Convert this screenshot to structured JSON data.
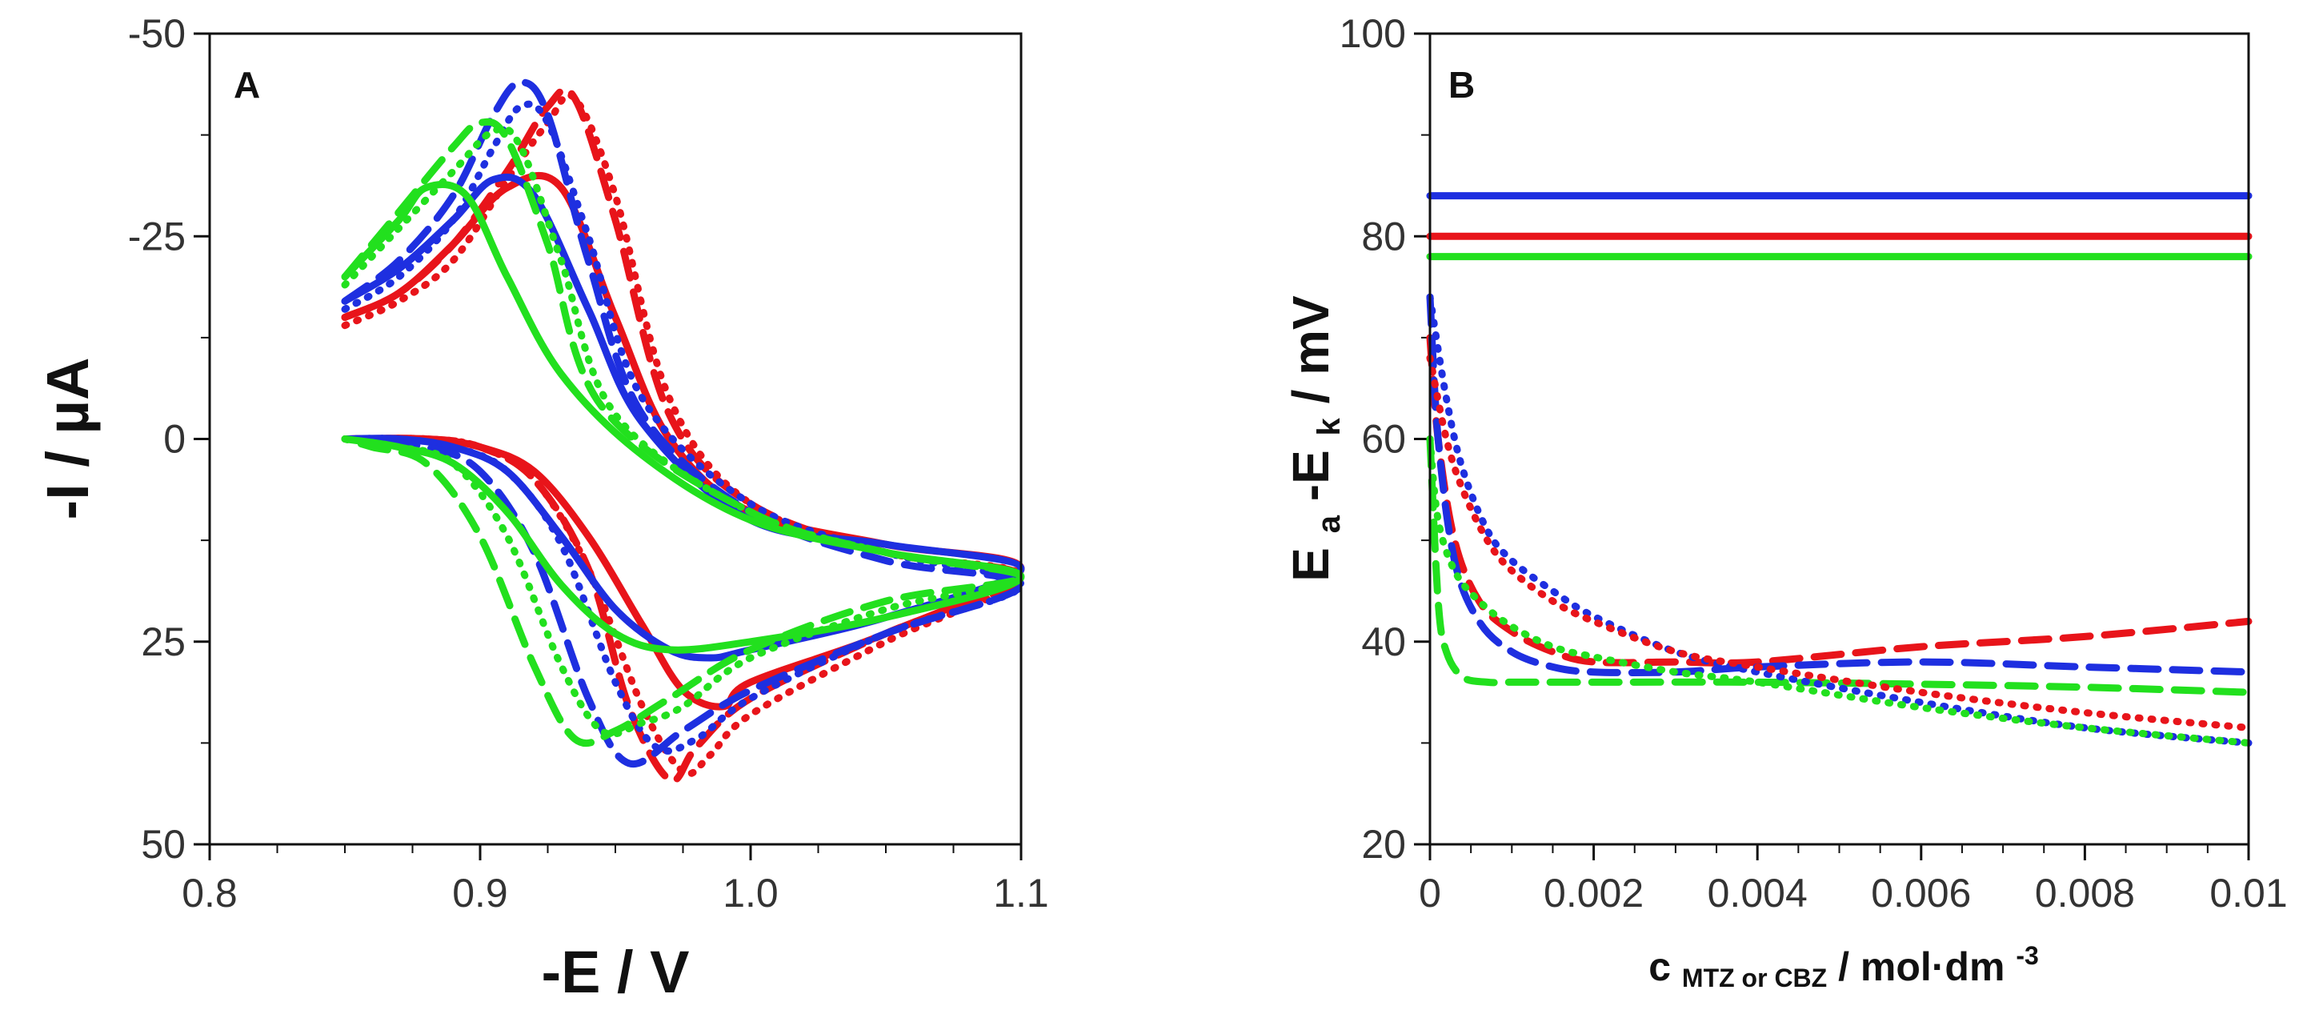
{
  "chart_data": [
    {
      "panel": "A",
      "type": "line",
      "title": "",
      "xlabel": "-E / V",
      "ylabel": "-I / µA",
      "xlim": [
        0.8,
        1.1
      ],
      "ylim": [
        -50,
        50
      ],
      "y_inverted": true,
      "xticks": [
        "0.8",
        "0.9",
        "1.0",
        "1.1"
      ],
      "yticks": [
        "-50",
        "-25",
        "0",
        "25",
        "50"
      ],
      "series": [
        {
          "name": "red solid",
          "color": "#e8141a",
          "style": "solid",
          "x": [
            0.85,
            0.87,
            0.89,
            0.91,
            0.93,
            0.95,
            0.97,
            1.0,
            1.05,
            1.1,
            1.05,
            1.0,
            0.99,
            0.975,
            0.96,
            0.94,
            0.92,
            0.9,
            0.88,
            0.85
          ],
          "y": [
            -15,
            -18,
            -24,
            -31,
            -31,
            -15,
            0,
            9,
            13,
            16,
            24,
            30,
            33,
            31,
            23,
            12,
            4,
            1,
            0,
            0
          ]
        },
        {
          "name": "red dotted",
          "color": "#e8141a",
          "style": "dotted",
          "x": [
            0.85,
            0.87,
            0.89,
            0.91,
            0.925,
            0.935,
            0.95,
            0.97,
            1.0,
            1.05,
            1.1,
            1.05,
            1.0,
            0.985,
            0.975,
            0.96,
            0.94,
            0.92,
            0.9,
            0.88,
            0.85
          ],
          "y": [
            -14,
            -17,
            -22,
            -32,
            -39,
            -42,
            -30,
            -5,
            8,
            14,
            17,
            25,
            34,
            39,
            41,
            33,
            16,
            5,
            1,
            0,
            0
          ]
        },
        {
          "name": "red dashed",
          "color": "#e8141a",
          "style": "dashed",
          "x": [
            0.85,
            0.87,
            0.89,
            0.91,
            0.925,
            0.935,
            0.95,
            0.97,
            1.0,
            1.05,
            1.1,
            1.05,
            1.0,
            0.98,
            0.97,
            0.955,
            0.94,
            0.92,
            0.9,
            0.88,
            0.85
          ],
          "y": [
            -15,
            -18,
            -24,
            -33,
            -41,
            -42,
            -27,
            -3,
            8,
            14,
            17,
            24,
            32,
            38,
            42,
            33,
            16,
            5,
            1,
            0,
            0
          ]
        },
        {
          "name": "blue solid",
          "color": "#1e2fe0",
          "style": "solid",
          "x": [
            0.85,
            0.87,
            0.89,
            0.905,
            0.92,
            0.94,
            0.96,
            1.0,
            1.05,
            1.1,
            1.05,
            1.0,
            0.985,
            0.97,
            0.95,
            0.93,
            0.91,
            0.89,
            0.87,
            0.85
          ],
          "y": [
            -17,
            -21,
            -27,
            -32,
            -30,
            -16,
            -2,
            10,
            13,
            16,
            22,
            26,
            27,
            26,
            21,
            12,
            4,
            1,
            0,
            0
          ]
        },
        {
          "name": "blue dotted",
          "color": "#1e2fe0",
          "style": "dotted",
          "x": [
            0.85,
            0.87,
            0.89,
            0.905,
            0.915,
            0.925,
            0.94,
            0.96,
            1.0,
            1.05,
            1.1,
            1.05,
            1.0,
            0.98,
            0.965,
            0.95,
            0.93,
            0.91,
            0.89,
            0.87,
            0.85
          ],
          "y": [
            -16,
            -20,
            -27,
            -36,
            -41,
            -39,
            -25,
            -5,
            8,
            14,
            18,
            24,
            32,
            37,
            38,
            30,
            13,
            4,
            1,
            0,
            0
          ]
        },
        {
          "name": "blue dashed",
          "color": "#1e2fe0",
          "style": "dashed",
          "x": [
            0.85,
            0.87,
            0.89,
            0.905,
            0.915,
            0.925,
            0.94,
            0.96,
            1.0,
            1.05,
            1.1,
            1.05,
            1.0,
            0.975,
            0.955,
            0.94,
            0.92,
            0.9,
            0.88,
            0.85
          ],
          "y": [
            -17,
            -22,
            -30,
            -40,
            -44,
            -40,
            -22,
            -3,
            9,
            15,
            18,
            24,
            31,
            36,
            40,
            32,
            14,
            4,
            1,
            0
          ]
        },
        {
          "name": "green solid",
          "color": "#22e01e",
          "style": "solid",
          "x": [
            0.85,
            0.87,
            0.88,
            0.895,
            0.91,
            0.93,
            0.96,
            1.0,
            1.05,
            1.1,
            1.05,
            1.0,
            0.97,
            0.95,
            0.93,
            0.91,
            0.89,
            0.87,
            0.85
          ],
          "y": [
            -20,
            -27,
            -31,
            -30,
            -20,
            -8,
            2,
            10,
            14,
            17,
            22,
            25,
            26,
            24,
            18,
            9,
            3,
            1,
            0
          ]
        },
        {
          "name": "green dotted",
          "color": "#22e01e",
          "style": "dotted",
          "x": [
            0.85,
            0.87,
            0.89,
            0.905,
            0.915,
            0.93,
            0.95,
            1.0,
            1.05,
            1.1,
            1.05,
            1.0,
            0.975,
            0.96,
            0.945,
            0.93,
            0.91,
            0.89,
            0.87,
            0.85
          ],
          "y": [
            -19,
            -26,
            -33,
            -38,
            -36,
            -22,
            -3,
            9,
            14,
            17,
            21,
            27,
            33,
            35,
            36,
            28,
            12,
            3,
            1,
            0
          ]
        },
        {
          "name": "green dashed",
          "color": "#22e01e",
          "style": "dashed",
          "x": [
            0.85,
            0.87,
            0.89,
            0.9,
            0.91,
            0.925,
            0.945,
            1.0,
            1.05,
            1.1,
            1.05,
            1.0,
            0.97,
            0.95,
            0.935,
            0.92,
            0.9,
            0.88,
            0.86,
            0.85
          ],
          "y": [
            -20,
            -28,
            -36,
            -39,
            -37,
            -24,
            -4,
            9,
            14,
            17,
            20,
            26,
            32,
            36,
            37,
            28,
            12,
            3,
            1,
            0
          ]
        }
      ]
    },
    {
      "panel": "B",
      "type": "line",
      "title": "",
      "xlabel": "c MTZ or CBZ / mol·dm-3",
      "ylabel": "Ea-Ek / mV",
      "xlim": [
        0,
        0.01
      ],
      "ylim": [
        20,
        100
      ],
      "xticks": [
        "0",
        "0.002",
        "0.004",
        "0.006",
        "0.008",
        "0.01"
      ],
      "yticks": [
        "20",
        "40",
        "60",
        "80",
        "100"
      ],
      "series": [
        {
          "name": "blue solid",
          "color": "#1e2fe0",
          "style": "solid",
          "x": [
            0,
            0.01
          ],
          "y": [
            84,
            84
          ]
        },
        {
          "name": "red solid",
          "color": "#e8141a",
          "style": "solid",
          "x": [
            0,
            0.01
          ],
          "y": [
            80,
            80
          ]
        },
        {
          "name": "green solid",
          "color": "#22e01e",
          "style": "solid",
          "x": [
            0,
            0.01
          ],
          "y": [
            78,
            78
          ]
        },
        {
          "name": "red dashed",
          "color": "#e8141a",
          "style": "dashed",
          "x": [
            0,
            0.0001,
            0.0003,
            0.0006,
            0.001,
            0.0015,
            0.002,
            0.003,
            0.004,
            0.006,
            0.008,
            0.01
          ],
          "y": [
            70,
            60,
            50,
            44,
            41,
            39,
            38,
            38,
            38,
            39.5,
            40.5,
            42
          ]
        },
        {
          "name": "blue dashed",
          "color": "#1e2fe0",
          "style": "dashed",
          "x": [
            0,
            0.0001,
            0.0003,
            0.0006,
            0.001,
            0.0015,
            0.002,
            0.003,
            0.004,
            0.006,
            0.008,
            0.01
          ],
          "y": [
            74,
            60,
            48,
            42,
            39,
            37.5,
            37,
            37,
            37.5,
            38,
            37.5,
            37
          ]
        },
        {
          "name": "green dashed",
          "color": "#22e01e",
          "style": "dashed",
          "x": [
            0,
            0.0001,
            0.0002,
            0.0004,
            0.0007,
            0.001,
            0.002,
            0.004,
            0.006,
            0.008,
            0.01
          ],
          "y": [
            60,
            44,
            39,
            36.5,
            36,
            36,
            36,
            36,
            35.8,
            35.5,
            35
          ]
        },
        {
          "name": "blue dotted",
          "color": "#1e2fe0",
          "style": "dotted",
          "x": [
            0,
            0.0002,
            0.0004,
            0.0007,
            0.001,
            0.0015,
            0.002,
            0.003,
            0.004,
            0.006,
            0.008,
            0.01
          ],
          "y": [
            74,
            64,
            57,
            51,
            48,
            45,
            42.5,
            39,
            37,
            34,
            31.5,
            30
          ]
        },
        {
          "name": "red dotted",
          "color": "#e8141a",
          "style": "dotted",
          "x": [
            0,
            0.0002,
            0.0004,
            0.0007,
            0.001,
            0.0015,
            0.002,
            0.003,
            0.004,
            0.006,
            0.008,
            0.01
          ],
          "y": [
            68,
            60,
            55,
            50,
            47,
            44,
            42,
            39,
            37.5,
            35,
            33,
            31.5
          ]
        },
        {
          "name": "green dotted",
          "color": "#22e01e",
          "style": "dotted",
          "x": [
            0,
            0.0001,
            0.0003,
            0.0006,
            0.001,
            0.0015,
            0.002,
            0.003,
            0.004,
            0.006,
            0.008,
            0.01
          ],
          "y": [
            60,
            52,
            47,
            44,
            41.5,
            39.5,
            38.5,
            37,
            36,
            33.5,
            31.5,
            30
          ]
        }
      ]
    }
  ]
}
